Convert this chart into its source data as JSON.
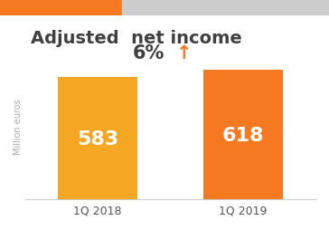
{
  "title": "Adjusted  net income",
  "categories": [
    "1Q 2018",
    "1Q 2019"
  ],
  "values": [
    583,
    618
  ],
  "bar_colors": [
    "#F5A623",
    "#F47920"
  ],
  "bar_labels": [
    "583",
    "618"
  ],
  "bar_label_color": "#ffffff",
  "bar_label_fontsize": 16,
  "ylabel": "Million euros",
  "ylabel_color": "#aaaaaa",
  "growth_text": "6%",
  "growth_arrow": "↑",
  "growth_color": "#F47920",
  "growth_fontsize": 15,
  "title_fontsize": 14,
  "title_color": "#404040",
  "top_bar_orange": "#F47920",
  "top_bar_gray": "#cccccc",
  "background_color": "#ffffff",
  "ylim": [
    0,
    700
  ],
  "xlim": [
    -0.5,
    1.5
  ]
}
